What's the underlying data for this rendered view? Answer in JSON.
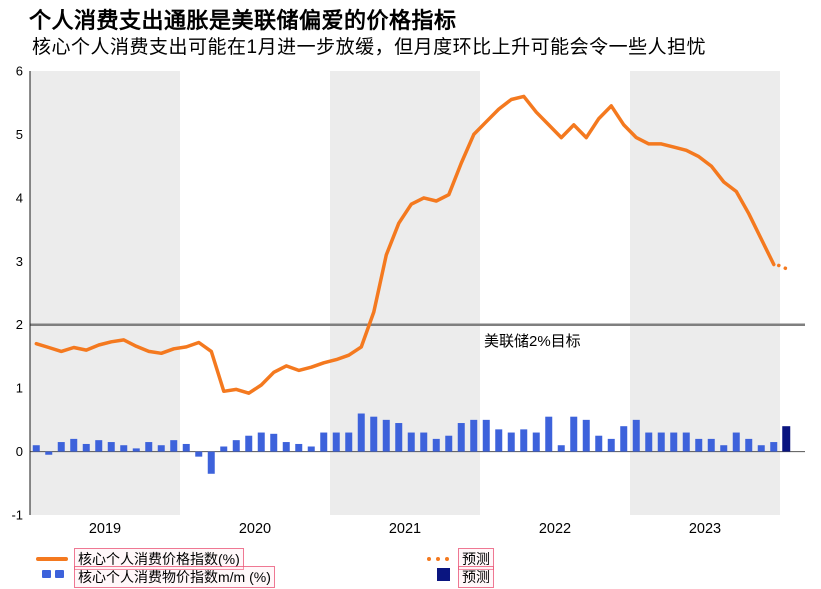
{
  "header": {
    "title": "个人消费支出通胀是美联储偏爱的价格指标",
    "subtitle": "核心个人消费支出可能在1月进一步放缓，但月度环比上升可能会令一些人担忧"
  },
  "legend": {
    "line_label": "核心个人消费价格指数(%)",
    "bar_label": "核心个人消费物价指数m/m (%)",
    "line_forecast_label": "预测",
    "bar_forecast_label": "预测"
  },
  "colors": {
    "line": "#f4791f",
    "bar": "#3d62db",
    "forecast_bar": "#0a1580",
    "target_line": "#7f7f7f",
    "band": "#ececec",
    "axis": "#1a1a1a"
  },
  "chart_data": {
    "type": "line+bar",
    "title": "个人消费支出通胀是美联储偏爱的价格指标",
    "subtitle": "核心个人消费支出可能在1月进一步放缓，但月度环比上升可能会令一些人担忧",
    "ylim": [
      -1,
      6
    ],
    "y_ticks": [
      6,
      5,
      4,
      3,
      2,
      1,
      0,
      -1
    ],
    "x_year_labels": [
      "2019",
      "2020",
      "2021",
      "2022",
      "2023"
    ],
    "band_years_shaded": [
      "2019",
      "2021",
      "2023"
    ],
    "grid": false,
    "legend_position": "bottom",
    "target_line": {
      "value": 2,
      "label": "美联储2%目标"
    },
    "x_months": [
      "2019-01",
      "2019-02",
      "2019-03",
      "2019-04",
      "2019-05",
      "2019-06",
      "2019-07",
      "2019-08",
      "2019-09",
      "2019-10",
      "2019-11",
      "2019-12",
      "2020-01",
      "2020-02",
      "2020-03",
      "2020-04",
      "2020-05",
      "2020-06",
      "2020-07",
      "2020-08",
      "2020-09",
      "2020-10",
      "2020-11",
      "2020-12",
      "2021-01",
      "2021-02",
      "2021-03",
      "2021-04",
      "2021-05",
      "2021-06",
      "2021-07",
      "2021-08",
      "2021-09",
      "2021-10",
      "2021-11",
      "2021-12",
      "2022-01",
      "2022-02",
      "2022-03",
      "2022-04",
      "2022-05",
      "2022-06",
      "2022-07",
      "2022-08",
      "2022-09",
      "2022-10",
      "2022-11",
      "2022-12",
      "2023-01",
      "2023-02",
      "2023-03",
      "2023-04",
      "2023-05",
      "2023-06",
      "2023-07",
      "2023-08",
      "2023-09",
      "2023-10",
      "2023-11",
      "2023-12"
    ],
    "forecast_month": "2024-01",
    "series": [
      {
        "name": "核心个人消费价格指数(%)",
        "type": "line",
        "unit": "% y/y",
        "values": [
          1.7,
          1.64,
          1.58,
          1.64,
          1.6,
          1.68,
          1.73,
          1.76,
          1.66,
          1.58,
          1.55,
          1.62,
          1.65,
          1.72,
          1.58,
          0.95,
          0.98,
          0.92,
          1.05,
          1.25,
          1.35,
          1.28,
          1.33,
          1.4,
          1.45,
          1.52,
          1.65,
          2.2,
          3.1,
          3.6,
          3.9,
          4.0,
          3.95,
          4.05,
          4.55,
          5.0,
          5.2,
          5.4,
          5.55,
          5.6,
          5.35,
          5.15,
          4.95,
          5.15,
          4.95,
          5.25,
          5.45,
          5.15,
          4.95,
          4.85,
          4.85,
          4.8,
          4.75,
          4.65,
          4.5,
          4.25,
          4.1,
          3.75,
          3.35,
          2.95
        ],
        "forecast_value": 2.85
      },
      {
        "name": "核心个人消费物价指数m/m (%)",
        "type": "bar",
        "unit": "% m/m",
        "values": [
          0.1,
          -0.05,
          0.15,
          0.2,
          0.12,
          0.18,
          0.15,
          0.1,
          0.05,
          0.15,
          0.1,
          0.18,
          0.12,
          -0.08,
          -0.35,
          0.08,
          0.18,
          0.25,
          0.3,
          0.28,
          0.15,
          0.12,
          0.08,
          0.3,
          0.3,
          0.3,
          0.6,
          0.55,
          0.5,
          0.45,
          0.3,
          0.3,
          0.2,
          0.25,
          0.45,
          0.5,
          0.5,
          0.35,
          0.3,
          0.35,
          0.3,
          0.55,
          0.1,
          0.55,
          0.5,
          0.25,
          0.2,
          0.4,
          0.5,
          0.3,
          0.3,
          0.3,
          0.3,
          0.2,
          0.2,
          0.1,
          0.3,
          0.2,
          0.1,
          0.15
        ],
        "forecast_value": 0.4
      }
    ]
  }
}
